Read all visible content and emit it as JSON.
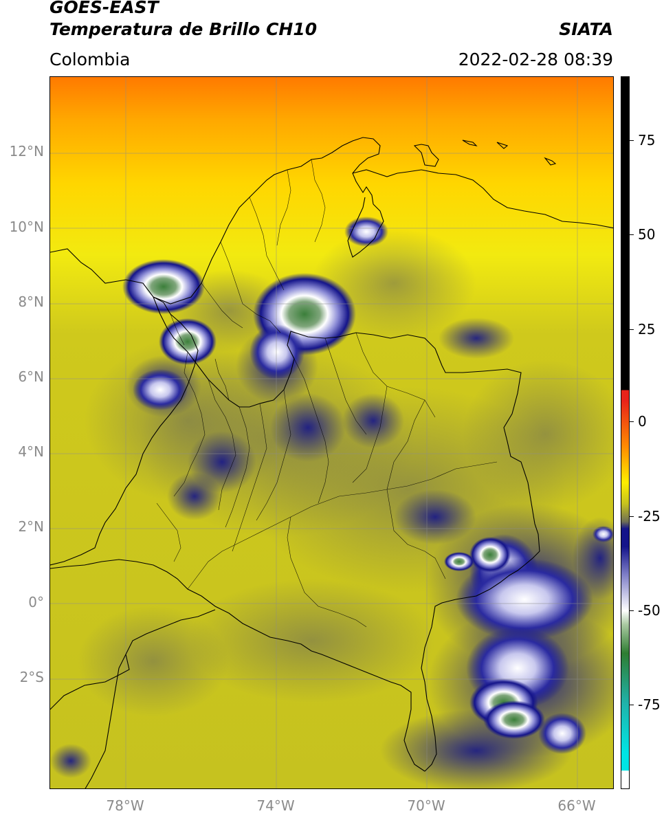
{
  "header": {
    "satellite": "GOES-EAST",
    "product": "Temperatura de Brillo CH10",
    "region": "Colombia",
    "organization": "SIATA",
    "timestamp": "2022-02-28 08:39"
  },
  "map": {
    "lat_ticks": [
      "12°N",
      "10°N",
      "8°N",
      "6°N",
      "4°N",
      "2°N",
      "0°",
      "2°S"
    ],
    "lon_ticks": [
      "78°W",
      "74°W",
      "70°W",
      "66°W"
    ]
  },
  "colorbar": {
    "labels": [
      "75",
      "50",
      "25",
      "0",
      "-25",
      "-50",
      "-75"
    ],
    "colors": {
      "black": "#000000",
      "red": "#e8231a",
      "orange": "#ff8c00",
      "yellow": "#ffee00",
      "olive": "#c5c21e",
      "gray": "#6f6f55",
      "navy": "#14148a",
      "white": "#ffffff",
      "green": "#2e7d32",
      "teal": "#20b2aa",
      "cyan": "#00e5e5"
    }
  }
}
